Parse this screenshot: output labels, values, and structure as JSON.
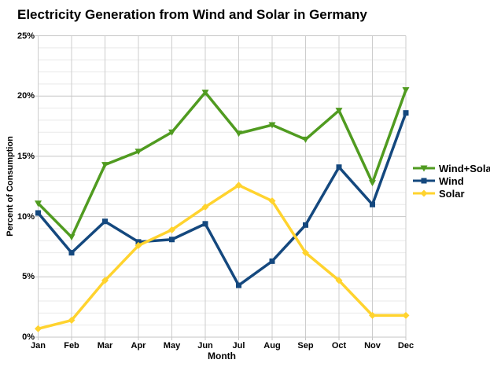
{
  "chart_data": {
    "type": "line",
    "title": "Electricity Generation from Wind and Solar in Germany",
    "xlabel": "Month",
    "ylabel": "Percent of Consumption",
    "categories": [
      "Jan",
      "Feb",
      "Mar",
      "Apr",
      "May",
      "Jun",
      "Jul",
      "Aug",
      "Sep",
      "Oct",
      "Nov",
      "Dec"
    ],
    "ylim": [
      0,
      25
    ],
    "ytick_labels": [
      "0%",
      "5%",
      "10%",
      "15%",
      "20%",
      "25%"
    ],
    "ytick_interval_major": 5,
    "ytick_interval_minor": 1,
    "grid": true,
    "legend_position": "right",
    "series": [
      {
        "name": "Wind+Solar",
        "color": "#509b20",
        "marker": "triangle-down",
        "values": [
          11.1,
          8.3,
          14.3,
          15.4,
          17.0,
          20.3,
          16.9,
          17.6,
          16.4,
          18.8,
          12.8,
          20.5
        ]
      },
      {
        "name": "Wind",
        "color": "#14487e",
        "marker": "square",
        "values": [
          10.3,
          7.0,
          9.6,
          7.9,
          8.1,
          9.4,
          4.3,
          6.3,
          9.3,
          14.1,
          11.0,
          18.6
        ]
      },
      {
        "name": "Solar",
        "color": "#ffd32e",
        "marker": "diamond",
        "values": [
          0.7,
          1.4,
          4.7,
          7.6,
          8.9,
          10.8,
          12.6,
          11.3,
          7.0,
          4.7,
          1.8,
          1.8
        ]
      }
    ],
    "colors": {
      "background": "#ffffff",
      "text": "#000000",
      "grid_major": "#c6c6c6",
      "grid_minor": "#e9e9e9",
      "grid_vertical": "#cdcdcd"
    }
  }
}
